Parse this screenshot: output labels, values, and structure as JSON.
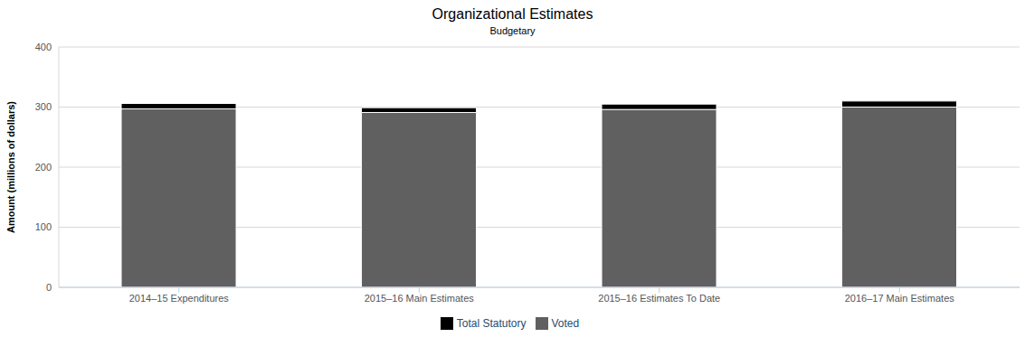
{
  "chart_data": {
    "type": "bar",
    "title": "Organizational Estimates",
    "subtitle": "Budgetary",
    "y_label": "Amount (millions of dollars)",
    "categories": [
      "2014–15 Expenditures",
      "2015–16 Main Estimates",
      "2015–16 Estimates To Date",
      "2016–17 Main Estimates"
    ],
    "series": [
      {
        "name": "Voted",
        "color": "#606060",
        "values": [
          297,
          291,
          296,
          300
        ]
      },
      {
        "name": "Total Statutory",
        "color": "#000000",
        "values": [
          9,
          8,
          9,
          10
        ]
      }
    ],
    "stacked": true,
    "ylim": [
      0,
      400
    ],
    "yticks": [
      0,
      100,
      200,
      300,
      400
    ],
    "grid": true,
    "legend": "bottom"
  }
}
